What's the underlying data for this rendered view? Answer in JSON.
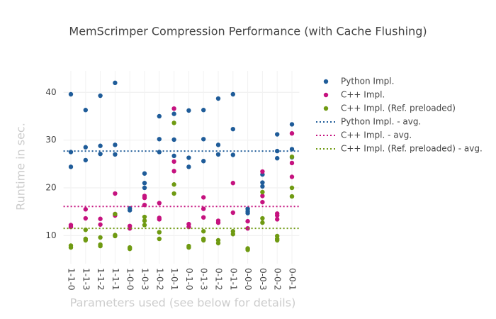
{
  "chart_data": {
    "type": "scatter",
    "title": "MemScrimper Compression Performance (with Cache Flushing)",
    "x_label": "Parameters used (see below for details)",
    "y_label": "Runtime in sec.",
    "categories": [
      "1-1-0",
      "1-1-3",
      "1-1-2",
      "1-1-1",
      "1-0-0",
      "1-0-3",
      "1-0-2",
      "1-0-1",
      "0-1-0",
      "0-1-3",
      "0-1-2",
      "0-1-1",
      "0-0-0",
      "0-0-3",
      "0-0-2",
      "0-0-1"
    ],
    "ylim": [
      4.1,
      44.5
    ],
    "yticks": [
      10,
      20,
      30,
      40
    ],
    "grid": true,
    "legend": "right",
    "series": [
      {
        "name": "Python Impl.",
        "color": "#1f5c99",
        "mode": "markers",
        "x": [
          "1-1-0",
          "1-1-0",
          "1-1-0",
          "1-1-3",
          "1-1-3",
          "1-1-3",
          "1-1-2",
          "1-1-2",
          "1-1-2",
          "1-1-1",
          "1-1-1",
          "1-1-1",
          "1-0-0",
          "1-0-0",
          "1-0-3",
          "1-0-3",
          "1-0-3",
          "1-0-2",
          "1-0-2",
          "1-0-2",
          "1-0-1",
          "1-0-1",
          "1-0-1",
          "0-1-0",
          "0-1-0",
          "0-1-0",
          "0-1-3",
          "0-1-3",
          "0-1-3",
          "0-1-2",
          "0-1-2",
          "0-1-2",
          "0-1-1",
          "0-1-1",
          "0-1-1",
          "0-0-0",
          "0-0-0",
          "0-0-0",
          "0-0-3",
          "0-0-3",
          "0-0-3",
          "0-0-2",
          "0-0-2",
          "0-0-2",
          "0-0-1",
          "0-0-1",
          "0-0-1"
        ],
        "values": [
          39.6,
          27.5,
          24.4,
          36.3,
          28.5,
          25.8,
          39.3,
          28.8,
          27.1,
          42,
          29,
          27,
          15.7,
          15.3,
          23,
          21,
          20,
          35,
          30.2,
          27.5,
          35.5,
          30.1,
          26.7,
          36.2,
          26.3,
          24.4,
          36.3,
          30.2,
          25.6,
          38.7,
          29,
          27,
          39.6,
          32.3,
          26.9,
          15.6,
          15.1,
          14.7,
          22.8,
          21.1,
          20.3,
          31.2,
          27.7,
          26.2,
          33.3,
          28.1,
          26.4
        ]
      },
      {
        "name": "C++ Impl.",
        "color": "#c5127f",
        "mode": "markers",
        "x": [
          "1-1-0",
          "1-1-0",
          "1-1-3",
          "1-1-3",
          "1-1-2",
          "1-1-2",
          "1-1-1",
          "1-1-1",
          "1-1-1",
          "1-0-0",
          "1-0-0",
          "1-0-3",
          "1-0-3",
          "1-0-3",
          "1-0-2",
          "1-0-2",
          "1-0-2",
          "1-0-1",
          "1-0-1",
          "1-0-1",
          "0-1-0",
          "0-1-0",
          "0-1-3",
          "0-1-3",
          "0-1-3",
          "0-1-2",
          "0-1-2",
          "0-1-1",
          "0-1-1",
          "0-0-0",
          "0-0-0",
          "0-0-3",
          "0-0-3",
          "0-0-3",
          "0-0-2",
          "0-0-2",
          "0-0-2",
          "0-0-1",
          "0-0-1",
          "0-0-1"
        ],
        "values": [
          12.2,
          11.8,
          15.5,
          13.6,
          13.5,
          12.3,
          18.8,
          14.5,
          14.2,
          12,
          11.5,
          18.3,
          17.9,
          16.4,
          16.8,
          13.7,
          13.4,
          36.6,
          25.5,
          23.5,
          12.4,
          11.8,
          18,
          15.6,
          13.8,
          13.1,
          12.7,
          21,
          14.8,
          13,
          11.5,
          23.4,
          18.3,
          17,
          14.6,
          14.2,
          13.4,
          31.4,
          25.2,
          22.3
        ]
      },
      {
        "name": "C++ Impl. (Ref. preloaded)",
        "color": "#6f9a12",
        "mode": "markers",
        "x": [
          "1-1-0",
          "1-1-0",
          "1-1-3",
          "1-1-3",
          "1-1-3",
          "1-1-2",
          "1-1-2",
          "1-1-2",
          "1-1-1",
          "1-1-1",
          "1-1-1",
          "1-0-0",
          "1-0-0",
          "1-0-3",
          "1-0-3",
          "1-0-3",
          "1-0-2",
          "1-0-2",
          "1-0-1",
          "1-0-1",
          "1-0-1",
          "0-1-0",
          "0-1-0",
          "0-1-3",
          "0-1-3",
          "0-1-3",
          "0-1-2",
          "0-1-2",
          "0-1-1",
          "0-1-1",
          "0-0-0",
          "0-0-0",
          "0-0-3",
          "0-0-3",
          "0-0-3",
          "0-0-2",
          "0-0-2",
          "0-0-2",
          "0-0-1",
          "0-0-1",
          "0-0-1"
        ],
        "values": [
          7.9,
          7.5,
          11.2,
          9.3,
          9,
          9.6,
          8.1,
          7.8,
          14.5,
          10.1,
          9.9,
          7.5,
          7.2,
          13.9,
          13.1,
          12.2,
          10.7,
          9.3,
          33.6,
          20.7,
          18.8,
          7.8,
          7.5,
          10.9,
          9.3,
          9,
          9,
          8.4,
          10.9,
          10.3,
          7.3,
          7,
          19.1,
          13.6,
          12.7,
          9.9,
          9.3,
          9,
          26.5,
          20,
          18.2
        ]
      },
      {
        "name": "Python Impl. - avg.",
        "color": "#1f5c99",
        "mode": "hline",
        "dash": "dot",
        "values": [
          27.7
        ]
      },
      {
        "name": "C++ Impl. - avg.",
        "color": "#c5127f",
        "mode": "hline",
        "dash": "dot",
        "values": [
          16.1
        ]
      },
      {
        "name": "C++ Impl. (Ref. preloaded) - avg.",
        "color": "#6f9a12",
        "mode": "hline",
        "dash": "dot",
        "values": [
          11.5
        ]
      }
    ]
  }
}
